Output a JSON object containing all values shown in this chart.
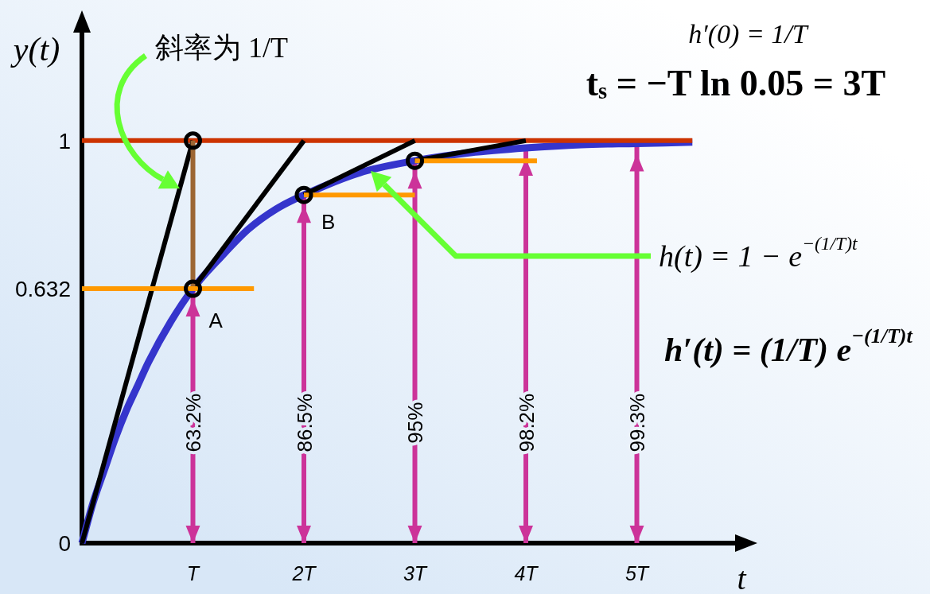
{
  "chart_data": {
    "type": "line",
    "xlabel": "t",
    "ylabel": "y(t)",
    "xlim": [
      0,
      6
    ],
    "ylim": [
      0,
      1.3
    ],
    "xticks": [
      {
        "value": 1,
        "label": "T"
      },
      {
        "value": 2,
        "label": "2T"
      },
      {
        "value": 3,
        "label": "3T"
      },
      {
        "value": 4,
        "label": "4T"
      },
      {
        "value": 5,
        "label": "5T"
      }
    ],
    "yticks": [
      0,
      0.632,
      1
    ],
    "series": [
      {
        "type": "line",
        "color": "#3535cc",
        "x": [
          0,
          0.1,
          0.2,
          0.3,
          0.4,
          0.5,
          0.6,
          0.8,
          1,
          1.25,
          1.5,
          1.75,
          2,
          2.5,
          3,
          3.5,
          4,
          4.5,
          5,
          5.5
        ],
        "values": [
          0,
          0.1,
          0.18,
          0.26,
          0.33,
          0.39,
          0.45,
          0.55,
          0.632,
          0.71,
          0.78,
          0.83,
          0.865,
          0.92,
          0.95,
          0.97,
          0.982,
          0.99,
          0.993,
          0.996
        ]
      },
      {
        "color": "#cc3300",
        "x": [
          0,
          5.5
        ],
        "values": [
          1,
          1
        ]
      },
      {
        "color": "#000000",
        "x": [
          0,
          1
        ],
        "values": [
          0,
          1
        ]
      },
      {
        "color": "#000000",
        "x": [
          1,
          2
        ],
        "values": [
          0.632,
          1
        ]
      },
      {
        "color": "#000000",
        "x": [
          2,
          3
        ],
        "values": [
          0.865,
          1
        ]
      },
      {
        "color": "#000000",
        "x": [
          3,
          4
        ],
        "values": [
          0.95,
          1
        ]
      },
      {
        "color": "#9c6633",
        "x": [
          1,
          1
        ],
        "values": [
          0.632,
          1
        ]
      },
      {
        "color": "#ff9900",
        "x": [
          0,
          1.55
        ],
        "values": [
          0.632,
          0.632
        ]
      },
      {
        "color": "#ff9900",
        "x": [
          2,
          3
        ],
        "values": [
          0.865,
          0.865
        ]
      },
      {
        "color": "#ff9900",
        "x": [
          3,
          4.1
        ],
        "values": [
          0.95,
          0.95
        ]
      },
      {
        "type": "bar",
        "color": "#cc3399",
        "x": [
          1,
          2,
          3,
          4,
          5
        ],
        "values": [
          0.632,
          0.865,
          0.95,
          0.982,
          0.993
        ],
        "value_labels": [
          "63.2%",
          "86.5%",
          "95%",
          "98.2%",
          "99.3%"
        ]
      },
      {
        "type": "scatter",
        "color": "#000000",
        "marker": "circle",
        "x": [
          1,
          1,
          2,
          3
        ],
        "values": [
          0.632,
          1,
          0.865,
          0.95
        ]
      }
    ],
    "annotations": [
      "h′(0) = 1/T",
      "t$_{s}$ = −T ln 0.05 = 3T",
      "斜率为 1/T",
      "h(t) = 1 − e$^{−(1/T)t}$",
      "h′(t) = (1/T) e$^{−(1/T)t}$",
      {
        "text": "A",
        "x": 1,
        "y": 0.632
      },
      {
        "text": "B",
        "x": 2,
        "y": 0.865
      }
    ]
  }
}
